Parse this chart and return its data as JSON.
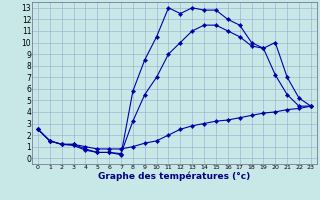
{
  "xlabel": "Graphe des températures (°c)",
  "bg_color": "#c8e8e8",
  "grid_color": "#99aacc",
  "line_color": "#0000aa",
  "x_ticks": [
    0,
    1,
    2,
    3,
    4,
    5,
    6,
    7,
    8,
    9,
    10,
    11,
    12,
    13,
    14,
    15,
    16,
    17,
    18,
    19,
    20,
    21,
    22,
    23
  ],
  "y_ticks": [
    0,
    1,
    2,
    3,
    4,
    5,
    6,
    7,
    8,
    9,
    10,
    11,
    12,
    13
  ],
  "line1_y": [
    2.5,
    1.5,
    1.2,
    1.1,
    0.7,
    0.5,
    0.5,
    0.3,
    5.8,
    8.5,
    10.5,
    13.0,
    12.5,
    13.0,
    12.8,
    12.8,
    12.0,
    11.5,
    10.0,
    9.5,
    10.0,
    7.0,
    5.2,
    4.5
  ],
  "line2_y": [
    2.5,
    1.5,
    1.2,
    1.2,
    0.8,
    0.5,
    0.5,
    0.4,
    3.2,
    5.5,
    7.0,
    9.0,
    10.0,
    11.0,
    11.5,
    11.5,
    11.0,
    10.5,
    9.7,
    9.5,
    7.2,
    5.5,
    4.5,
    4.5
  ],
  "line3_y": [
    2.5,
    1.5,
    1.2,
    1.2,
    1.0,
    0.8,
    0.8,
    0.8,
    1.0,
    1.3,
    1.5,
    2.0,
    2.5,
    2.8,
    3.0,
    3.2,
    3.3,
    3.5,
    3.7,
    3.9,
    4.0,
    4.2,
    4.3,
    4.5
  ],
  "xlim": [
    -0.5,
    23.5
  ],
  "ylim": [
    -0.5,
    13.5
  ],
  "tick_fontsize": 5.5,
  "xlabel_fontsize": 6.5,
  "lw": 0.8,
  "ms": 2.2
}
